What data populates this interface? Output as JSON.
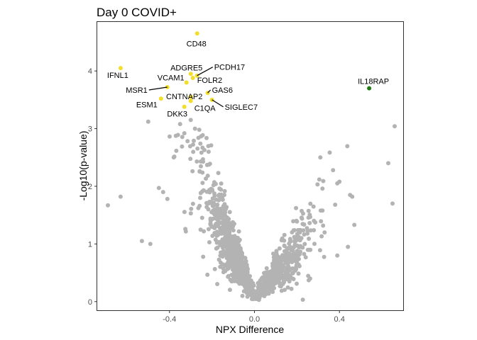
{
  "colors": {
    "background": "#ffffff",
    "panel_border": "#333333",
    "grey_points": "#b3b3b3",
    "highlight_down": "#f2de2b",
    "highlight_up": "#1f7a0f",
    "tick_label": "#4d4d4d",
    "label_line": "#000000"
  },
  "chart_data": {
    "type": "scatter",
    "title": "Day 0 COVID+",
    "xlabel": "NPX Difference",
    "ylabel": "-Log10(p-value)",
    "xlim": [
      -0.74,
      0.7
    ],
    "ylim": [
      -0.15,
      4.85
    ],
    "x_ticks": [
      -0.4,
      0.0,
      0.4
    ],
    "x_tick_labels": [
      "-0.4",
      "0.0",
      "0.4"
    ],
    "y_ticks": [
      0,
      1,
      2,
      3,
      4
    ],
    "y_tick_labels": [
      "0",
      "1",
      "2",
      "3",
      "4"
    ],
    "grid": false,
    "legend": "none",
    "grey_point_count": 1400,
    "highlighted_points": [
      {
        "label": "CD48",
        "x": -0.27,
        "y": 4.65,
        "group": "down"
      },
      {
        "label": "IFNL1",
        "x": -0.63,
        "y": 4.05,
        "group": "down"
      },
      {
        "label": "ADGRE5",
        "x": -0.3,
        "y": 3.95,
        "group": "down"
      },
      {
        "label": "PCDH17",
        "x": -0.27,
        "y": 3.92,
        "group": "down"
      },
      {
        "label": "FOLR2",
        "x": -0.29,
        "y": 3.88,
        "group": "down"
      },
      {
        "label": "VCAM1",
        "x": -0.32,
        "y": 3.8,
        "group": "down"
      },
      {
        "label": "MSR1",
        "x": -0.41,
        "y": 3.72,
        "group": "down"
      },
      {
        "label": "CNTNAP2",
        "x": -0.3,
        "y": 3.55,
        "group": "down"
      },
      {
        "label": "GAS6",
        "x": -0.22,
        "y": 3.62,
        "group": "down"
      },
      {
        "label": "ESM1",
        "x": -0.44,
        "y": 3.52,
        "group": "down"
      },
      {
        "label": "C1QA",
        "x": -0.3,
        "y": 3.48,
        "group": "down"
      },
      {
        "label": "SIGLEC7",
        "x": -0.2,
        "y": 3.5,
        "group": "down"
      },
      {
        "label": "DKK3",
        "x": -0.33,
        "y": 3.38,
        "group": "down"
      },
      {
        "label": "IL18RAP",
        "x": 0.54,
        "y": 3.7,
        "group": "up"
      }
    ],
    "grey_outliers": [
      {
        "x": -0.69,
        "y": 1.67
      },
      {
        "x": -0.63,
        "y": 1.82
      },
      {
        "x": -0.5,
        "y": 3.12
      },
      {
        "x": -0.53,
        "y": 1.05
      },
      {
        "x": -0.49,
        "y": 1.0
      },
      {
        "x": -0.45,
        "y": 1.97
      },
      {
        "x": -0.43,
        "y": 1.9
      },
      {
        "x": -0.41,
        "y": 1.78
      },
      {
        "x": -0.38,
        "y": 2.5
      },
      {
        "x": -0.35,
        "y": 3.08
      },
      {
        "x": -0.33,
        "y": 2.92
      },
      {
        "x": -0.28,
        "y": 3.0
      },
      {
        "x": -0.26,
        "y": 2.98
      },
      {
        "x": -0.3,
        "y": 3.15
      },
      {
        "x": 0.66,
        "y": 3.04
      },
      {
        "x": 0.63,
        "y": 2.4
      },
      {
        "x": 0.65,
        "y": 1.7
      },
      {
        "x": 0.46,
        "y": 1.82
      },
      {
        "x": 0.45,
        "y": 1.85
      },
      {
        "x": 0.4,
        "y": 2.08
      },
      {
        "x": 0.38,
        "y": 1.68
      },
      {
        "x": 0.32,
        "y": 1.96
      },
      {
        "x": 0.32,
        "y": 1.58
      },
      {
        "x": 0.28,
        "y": 1.4
      },
      {
        "x": 0.33,
        "y": 1.2
      },
      {
        "x": 0.25,
        "y": 1.22
      },
      {
        "x": 0.22,
        "y": 1.1
      },
      {
        "x": 0.47,
        "y": 1.33
      },
      {
        "x": 0.44,
        "y": 0.95
      },
      {
        "x": 0.39,
        "y": 0.8
      },
      {
        "x": 0.31,
        "y": 2.5
      },
      {
        "x": 0.37,
        "y": 2.28
      },
      {
        "x": 0.39,
        "y": 2.05
      }
    ]
  }
}
